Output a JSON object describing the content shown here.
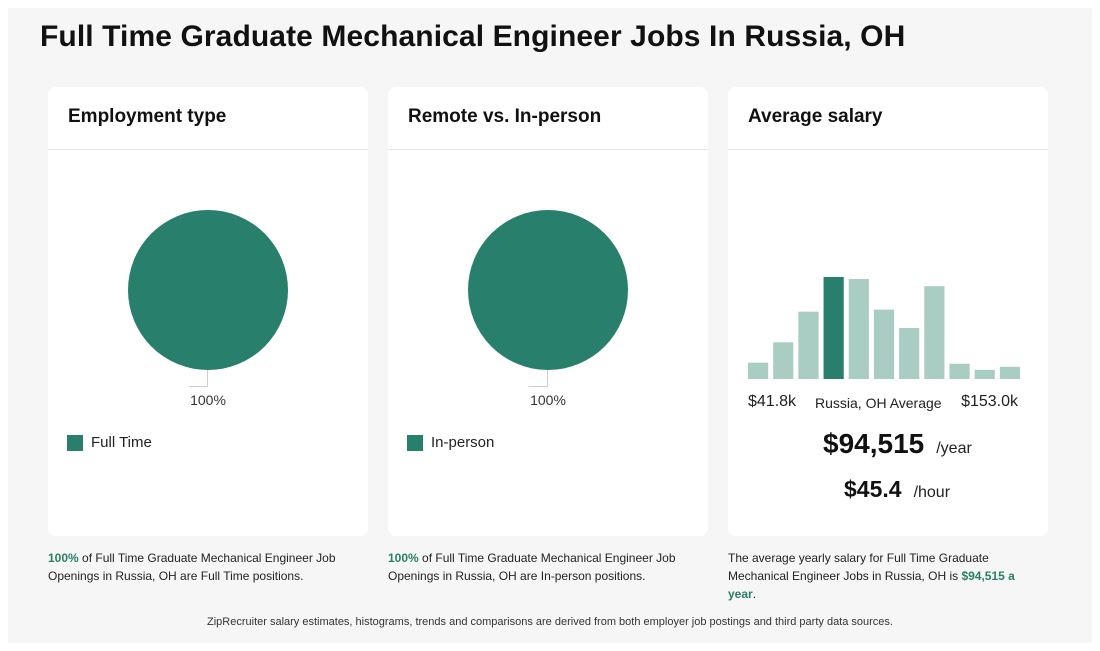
{
  "page": {
    "title": "Full Time Graduate Mechanical Engineer Jobs In Russia, OH"
  },
  "colors": {
    "accent": "#287f6b",
    "bar_light": "#a9cdc2",
    "highlight_text": "#2a7f66"
  },
  "cards": {
    "employment": {
      "title": "Employment type",
      "pie_label": "100%",
      "legend_label": "Full Time",
      "desc_highlight": "100%",
      "desc_rest": " of Full Time Graduate Mechanical Engineer Job Openings in Russia, OH are Full Time positions."
    },
    "remote": {
      "title": "Remote vs. In-person",
      "pie_label": "100%",
      "legend_label": "In-person",
      "desc_highlight": "100%",
      "desc_rest": " of Full Time Graduate Mechanical Engineer Job Openings in Russia, OH are In-person positions."
    },
    "salary": {
      "title": "Average salary",
      "range_low": "$41.8k",
      "range_mid": "Russia, OH Average",
      "range_high": "$153.0k",
      "yearly_value": "$94,515",
      "yearly_unit": "/year",
      "hourly_value": "$45.4",
      "hourly_unit": "/hour",
      "desc_prefix": "The average yearly salary for Full Time Graduate Mechanical Engineer Jobs in Russia, OH is ",
      "desc_highlight": "$94,515 a year",
      "desc_suffix": "."
    }
  },
  "footer": {
    "text": "ZipRecruiter salary estimates, histograms, trends and comparisons are derived from both employer job postings and third party data sources."
  },
  "chart_data": [
    {
      "type": "pie",
      "title": "Employment type",
      "slices": [
        {
          "label": "Full Time",
          "value": 100
        }
      ]
    },
    {
      "type": "pie",
      "title": "Remote vs. In-person",
      "slices": [
        {
          "label": "In-person",
          "value": 100
        }
      ]
    },
    {
      "type": "bar",
      "title": "Average salary",
      "x_range": [
        "$41.8k",
        "$153.0k"
      ],
      "values": [
        16,
        36,
        66,
        100,
        98,
        68,
        50,
        91,
        15,
        9,
        12
      ],
      "highlight_index": 3,
      "ylim": [
        0,
        100
      ]
    }
  ]
}
